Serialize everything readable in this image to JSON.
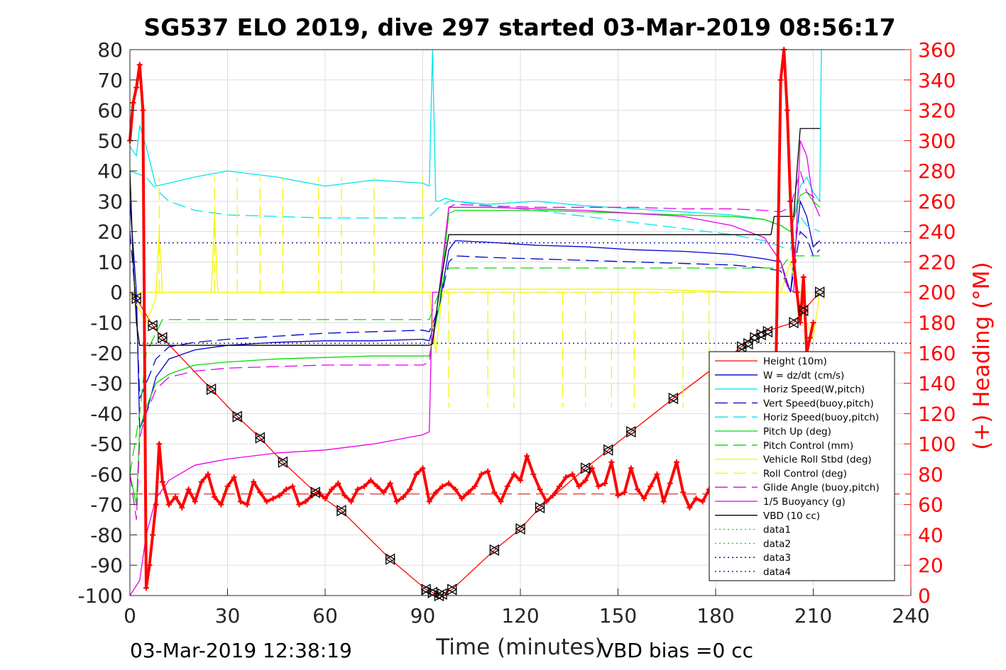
{
  "chart_data": {
    "type": "line",
    "title": "SG537 ELO 2019, dive 297 started 03-Mar-2019 08:56:17",
    "xlabel": "Time (minutes)",
    "ylabel_right": "(+) Heading (°M)",
    "xlim": [
      0,
      240
    ],
    "ylim": [
      -100,
      80
    ],
    "ylim_right": [
      0,
      360
    ],
    "x_ticks": [
      0,
      30,
      60,
      90,
      120,
      150,
      180,
      210,
      240
    ],
    "y_ticks": [
      80,
      70,
      60,
      50,
      40,
      30,
      20,
      10,
      0,
      -10,
      -20,
      -30,
      -40,
      -50,
      -60,
      -70,
      -80,
      -90,
      -100
    ],
    "y_ticks_right": [
      360,
      340,
      320,
      300,
      280,
      260,
      240,
      220,
      200,
      180,
      160,
      140,
      120,
      100,
      80,
      60,
      40,
      20,
      0
    ],
    "grid": true,
    "legend_position": "bottom-right",
    "footer_left": "03-Mar-2019 12:38:19",
    "footer_right": "VBD bias =0 cc",
    "series": [
      {
        "name": "Height (10m)",
        "color": "#ff0000",
        "style": "solid",
        "x": [
          0,
          2,
          7,
          10,
          25,
          33,
          40,
          47,
          57,
          65,
          80,
          91,
          93,
          95,
          96,
          99,
          112,
          120,
          126,
          140,
          147,
          154,
          167,
          188,
          192,
          204,
          207,
          212
        ],
        "y": [
          0,
          -2,
          -11,
          -15,
          -32,
          -41,
          -48,
          -56,
          -66,
          -72,
          -88,
          -98,
          -99,
          -100,
          -99.5,
          -98,
          -85,
          -78,
          -71,
          -58,
          -52,
          -46,
          -35,
          -18,
          -14,
          -10,
          -6,
          0
        ]
      },
      {
        "name": "W = dz/dt (cm/s)",
        "color": "#0000cd",
        "style": "solid",
        "x": [
          0,
          2,
          3,
          5,
          8,
          12,
          20,
          30,
          45,
          60,
          75,
          90,
          92,
          95,
          98,
          100,
          110,
          125,
          140,
          155,
          170,
          185,
          195,
          200,
          203,
          206,
          208,
          210,
          212
        ],
        "y": [
          30,
          0,
          -45,
          -40,
          -28,
          -22,
          -19,
          -17.5,
          -16.5,
          -16,
          -16,
          -15.5,
          -16,
          -5,
          14,
          17,
          16.5,
          15.5,
          15,
          14,
          13.5,
          12.5,
          11,
          10,
          0,
          30,
          25,
          15,
          17
        ]
      },
      {
        "name": "Horiz Speed(W,pitch)",
        "color": "#00e5ee",
        "style": "solid",
        "x": [
          0,
          2,
          3,
          5,
          8,
          12,
          20,
          30,
          45,
          60,
          75,
          90,
          92,
          93,
          94,
          95,
          97,
          100,
          110,
          125,
          140,
          155,
          170,
          185,
          195,
          200,
          203,
          206,
          208,
          210,
          212,
          212.5
        ],
        "y": [
          48,
          45,
          55,
          48,
          35,
          36,
          38,
          40,
          38,
          35,
          37,
          36,
          35,
          80,
          30,
          30,
          31,
          30,
          29,
          30,
          28.5,
          27.5,
          26.5,
          25.5,
          24,
          22,
          20,
          35,
          38,
          33,
          30,
          80
        ]
      },
      {
        "name": "Vert Speed(buoy,pitch)",
        "color": "#0000cd",
        "style": "dashed",
        "x": [
          0,
          2,
          3,
          5,
          8,
          12,
          20,
          30,
          45,
          60,
          75,
          90,
          92,
          95,
          98,
          100,
          110,
          125,
          140,
          155,
          170,
          185,
          195,
          200,
          203,
          206,
          208,
          210,
          212
        ],
        "y": [
          20,
          -5,
          -35,
          -30,
          -22,
          -18,
          -16.5,
          -15.5,
          -14.5,
          -13.5,
          -13,
          -12.5,
          -13,
          -5,
          10,
          12,
          11.5,
          11,
          10.5,
          10,
          9.5,
          9,
          8,
          7,
          0,
          20,
          18,
          12,
          14
        ]
      },
      {
        "name": "Horiz Speed(buoy,pitch)",
        "color": "#00e5ee",
        "style": "dashed",
        "x": [
          0,
          5,
          8,
          12,
          20,
          30,
          45,
          60,
          75,
          90,
          92,
          95,
          98,
          100,
          110,
          125,
          140,
          155,
          170,
          185,
          195,
          200,
          203,
          206,
          208,
          212
        ],
        "y": [
          40,
          38,
          34,
          30,
          27,
          25.5,
          25,
          24.5,
          24.5,
          24.5,
          25,
          28,
          30,
          30,
          28.5,
          27,
          25,
          23,
          21,
          19,
          17,
          15,
          14,
          25,
          22,
          20
        ]
      },
      {
        "name": "Pitch Up (deg)",
        "color": "#00dd00",
        "style": "solid",
        "x": [
          0,
          2,
          3,
          5,
          8,
          12,
          20,
          30,
          45,
          60,
          75,
          90,
          92,
          95,
          98,
          100,
          110,
          125,
          140,
          155,
          170,
          185,
          195,
          200,
          203,
          206,
          208,
          210,
          212
        ],
        "y": [
          -60,
          -70,
          -45,
          -38,
          -30,
          -27,
          -24,
          -23,
          -22,
          -21.5,
          -21,
          -21,
          -21,
          -5,
          26,
          27,
          27,
          27,
          26.5,
          26,
          25.5,
          25,
          24,
          22,
          20,
          32,
          33,
          30,
          28
        ]
      },
      {
        "name": "Pitch Control (mm)",
        "color": "#00dd00",
        "style": "dashed",
        "x": [
          0,
          3,
          5,
          10,
          30,
          60,
          90,
          92,
          95,
          98,
          100,
          130,
          160,
          190,
          200,
          203,
          206,
          210,
          212
        ],
        "y": [
          -60,
          -40,
          -20,
          -9,
          -9,
          -9,
          -9,
          -9,
          0,
          8,
          8,
          8,
          8,
          8,
          8,
          12,
          12,
          12,
          12
        ]
      },
      {
        "name": "Vehicle Roll Stbd (deg)",
        "color": "#f5f500",
        "style": "solid",
        "x": [
          0,
          5,
          8,
          9,
          10,
          25,
          26,
          27,
          60,
          92,
          94,
          96,
          98,
          100,
          130,
          160,
          190,
          200,
          203,
          206,
          210,
          212
        ],
        "y": [
          0,
          -10,
          -2,
          20,
          0,
          0,
          25,
          0,
          0,
          0,
          -20,
          0,
          1,
          1,
          1,
          1,
          0,
          0,
          10,
          -5,
          -15,
          0
        ]
      },
      {
        "name": "Roll Control (deg)",
        "color": "#f5f500",
        "style": "dashed",
        "x": [
          0,
          5,
          10,
          30,
          60,
          90,
          92,
          95,
          100,
          130,
          160,
          190,
          200,
          205,
          210
        ],
        "y": [
          0,
          0,
          0,
          0,
          0,
          0,
          0,
          0,
          0,
          0,
          0,
          0,
          0,
          0,
          0
        ]
      },
      {
        "name": "Glide Angle (buoy,pitch)",
        "color": "#e600e6",
        "style": "dashed",
        "x": [
          0,
          2,
          3,
          5,
          8,
          12,
          20,
          30,
          45,
          60,
          75,
          90,
          92,
          95,
          98,
          100,
          110,
          125,
          140,
          155,
          170,
          185,
          195,
          200,
          203,
          206,
          208,
          212
        ],
        "y": [
          -60,
          -75,
          -48,
          -40,
          -32,
          -28,
          -26,
          -25,
          -24.5,
          -24,
          -24,
          -24,
          -23,
          0,
          28,
          29,
          28.5,
          28,
          28,
          28,
          27.5,
          27.5,
          27,
          26.5,
          28,
          40,
          33,
          30
        ]
      },
      {
        "name": "1/5 Buoyancy (g)",
        "color": "#e600e6",
        "style": "solid",
        "x": [
          0,
          3,
          5,
          8,
          12,
          20,
          30,
          45,
          60,
          75,
          90,
          92,
          93,
          95,
          98,
          100,
          110,
          125,
          140,
          155,
          170,
          185,
          195,
          200,
          202,
          204,
          206,
          208,
          210,
          212
        ],
        "y": [
          -100,
          -95,
          -80,
          -68,
          -62,
          -57,
          -55,
          -53,
          -52,
          -50,
          -47,
          -46,
          0,
          0,
          28,
          28,
          28,
          27.5,
          27,
          26,
          25,
          22,
          18,
          10,
          2,
          0,
          50,
          45,
          30,
          25
        ]
      },
      {
        "name": "VBD (10 cc)",
        "color": "#000000",
        "style": "solid",
        "x": [
          0,
          1,
          2,
          3,
          92,
          93,
          95,
          98,
          197,
          198,
          204,
          205,
          206,
          210,
          212,
          212.1
        ],
        "y": [
          40,
          10,
          -10,
          -17.5,
          -17.5,
          -17,
          0,
          19,
          19,
          25,
          25,
          40,
          54,
          54,
          54,
          54
        ]
      },
      {
        "name": "data1",
        "color": "#00dd00",
        "style": "dotted",
        "x": [],
        "y": []
      },
      {
        "name": "data2",
        "color": "#00dd00",
        "style": "dotted",
        "x": [],
        "y": []
      },
      {
        "name": "data3",
        "color": "#00008b",
        "style": "dotted",
        "x": [
          0,
          240
        ],
        "y": [
          16.3,
          16.3
        ]
      },
      {
        "name": "data4",
        "color": "#00008b",
        "style": "dotted",
        "x": [
          0,
          240
        ],
        "y": [
          -16.8,
          -16.8
        ]
      }
    ],
    "heading_series": {
      "color": "#ff0000",
      "marker": "+",
      "axis": "right",
      "x": [
        0,
        1,
        2,
        3,
        4,
        5,
        6,
        7,
        8,
        9,
        10,
        12,
        14,
        16,
        18,
        20,
        22,
        24,
        26,
        28,
        30,
        32,
        34,
        36,
        38,
        40,
        42,
        44,
        46,
        48,
        50,
        52,
        54,
        56,
        58,
        60,
        62,
        64,
        66,
        68,
        70,
        72,
        74,
        76,
        78,
        80,
        82,
        84,
        86,
        88,
        90,
        92,
        94,
        96,
        98,
        100,
        102,
        104,
        106,
        108,
        110,
        112,
        114,
        116,
        118,
        120,
        122,
        124,
        126,
        128,
        130,
        132,
        134,
        136,
        138,
        140,
        142,
        144,
        146,
        148,
        150,
        152,
        154,
        156,
        158,
        160,
        162,
        164,
        166,
        168,
        170,
        172,
        174,
        176,
        178,
        180,
        182,
        184,
        186,
        188,
        190,
        192,
        194,
        196,
        198,
        200,
        201,
        202,
        203,
        204,
        205,
        206,
        207,
        208,
        209,
        210
      ],
      "y": [
        300,
        325,
        335,
        350,
        320,
        5,
        20,
        40,
        60,
        100,
        75,
        60,
        65,
        58,
        70,
        62,
        75,
        80,
        65,
        60,
        72,
        78,
        62,
        60,
        75,
        68,
        62,
        64,
        66,
        70,
        72,
        60,
        62,
        66,
        68,
        64,
        70,
        74,
        66,
        62,
        70,
        72,
        76,
        72,
        68,
        74,
        62,
        65,
        70,
        80,
        84,
        62,
        68,
        72,
        74,
        70,
        64,
        68,
        72,
        80,
        82,
        68,
        62,
        72,
        80,
        76,
        92,
        80,
        70,
        62,
        66,
        72,
        78,
        80,
        72,
        76,
        84,
        72,
        74,
        88,
        66,
        68,
        84,
        70,
        64,
        72,
        80,
        62,
        74,
        88,
        68,
        58,
        64,
        62,
        70,
        74,
        60,
        66,
        68,
        72,
        76,
        70,
        74,
        70,
        80,
        340,
        360,
        320,
        260,
        220,
        200,
        180,
        210,
        160,
        170,
        180
      ]
    },
    "heading_mean": 67,
    "triangle_markers": {
      "x": [
        2,
        7,
        10,
        25,
        33,
        40,
        47,
        57,
        65,
        80,
        91,
        93,
        95,
        96,
        99,
        112,
        120,
        126,
        140,
        147,
        154,
        167,
        188,
        190,
        192,
        194,
        196,
        204,
        207,
        212
      ],
      "y": [
        -2,
        -11,
        -15,
        -32,
        -41,
        -48,
        -56,
        -66,
        -72,
        -88,
        -98,
        -99,
        -100,
        -99.5,
        -98,
        -85,
        -78,
        -71,
        -58,
        -52,
        -46,
        -35,
        -18,
        -17,
        -15,
        -14,
        -13,
        -10,
        -6,
        0
      ]
    }
  }
}
